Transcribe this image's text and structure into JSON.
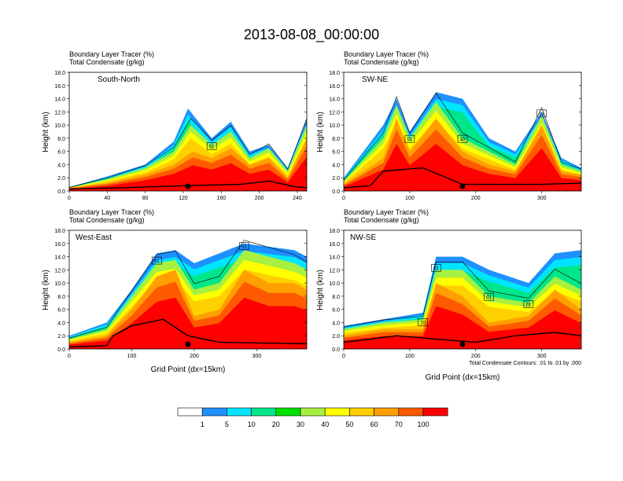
{
  "title": "2013-08-08_00:00:00",
  "colors": {
    "levels": [
      "#ffffff",
      "#1e90ff",
      "#00e5ff",
      "#00e68a",
      "#00e000",
      "#a8f040",
      "#ffff00",
      "#ffd000",
      "#ffa000",
      "#ff5a00",
      "#ff0000"
    ],
    "terrain": "#000000",
    "contour": "#000000"
  },
  "chart_data": [
    {
      "type": "contour",
      "label": "South-North",
      "line1": "Boundary Layer Tracer   (%)",
      "line2": "Total Condensate   (g/kg)",
      "ylabel": "Height (km)",
      "xlabel": "",
      "xlim": [
        0,
        250
      ],
      "ylim": [
        0,
        18
      ],
      "xticks": [
        0,
        40,
        80,
        120,
        160,
        200,
        240
      ],
      "yticks": [
        "0.0",
        "2.0",
        "4.0",
        "6.0",
        "8.0",
        "10.0",
        "12.0",
        "14.0",
        "16.0",
        "18.0"
      ],
      "marker_x": 125,
      "terrain": [
        [
          0,
          0.3
        ],
        [
          60,
          0.5
        ],
        [
          120,
          0.8
        ],
        [
          180,
          1.0
        ],
        [
          210,
          1.5
        ],
        [
          240,
          0.6
        ],
        [
          250,
          0.5
        ]
      ],
      "bands": [
        [
          [
            0,
            0.5
          ],
          [
            40,
            1.2
          ],
          [
            80,
            2.5
          ],
          [
            110,
            4.0
          ],
          [
            130,
            6.0
          ],
          [
            150,
            5.0
          ],
          [
            170,
            6.5
          ],
          [
            190,
            4.0
          ],
          [
            210,
            5.0
          ],
          [
            230,
            2.0
          ],
          [
            250,
            8.0
          ]
        ],
        [
          [
            0,
            0.5
          ],
          [
            40,
            1.8
          ],
          [
            80,
            3.5
          ],
          [
            110,
            6.0
          ],
          [
            128,
            10.0
          ],
          [
            150,
            7.0
          ],
          [
            170,
            9.0
          ],
          [
            190,
            5.0
          ],
          [
            210,
            6.5
          ],
          [
            230,
            3.0
          ],
          [
            250,
            10.0
          ]
        ],
        [
          [
            0,
            0.6
          ],
          [
            40,
            2.2
          ],
          [
            80,
            4.0
          ],
          [
            110,
            7.5
          ],
          [
            125,
            12.5
          ],
          [
            150,
            8.0
          ],
          [
            170,
            10.5
          ],
          [
            190,
            6.0
          ],
          [
            210,
            7.0
          ],
          [
            230,
            3.5
          ],
          [
            250,
            11.0
          ]
        ]
      ],
      "contour_labels": [
        "01"
      ],
      "note": ""
    },
    {
      "type": "contour",
      "label": "SW-NE",
      "line1": "Boundary Layer Tracer   (%)",
      "line2": "Total Condensate   (g/kg)",
      "ylabel": "Height (km)",
      "xlabel": "",
      "xlim": [
        0,
        360
      ],
      "ylim": [
        0,
        18
      ],
      "xticks": [
        0,
        100,
        200,
        300
      ],
      "yticks": [
        "0.0",
        "2.0",
        "4.0",
        "6.0",
        "8.0",
        "10.0",
        "12.0",
        "14.0",
        "16.0",
        "18.0"
      ],
      "marker_x": 180,
      "terrain": [
        [
          0,
          0.5
        ],
        [
          40,
          0.8
        ],
        [
          60,
          3.0
        ],
        [
          120,
          3.5
        ],
        [
          180,
          1.0
        ],
        [
          300,
          1.0
        ],
        [
          360,
          1.2
        ]
      ],
      "bands": [
        [
          [
            0,
            1.0
          ],
          [
            60,
            5.0
          ],
          [
            80,
            11.0
          ],
          [
            100,
            6.0
          ],
          [
            140,
            11.0
          ],
          [
            180,
            6.0
          ],
          [
            220,
            4.0
          ],
          [
            260,
            3.0
          ],
          [
            300,
            10.0
          ],
          [
            330,
            3.0
          ],
          [
            360,
            2.5
          ]
        ],
        [
          [
            0,
            1.5
          ],
          [
            60,
            8.0
          ],
          [
            80,
            13.0
          ],
          [
            100,
            8.0
          ],
          [
            140,
            13.5
          ],
          [
            180,
            8.0
          ],
          [
            220,
            6.0
          ],
          [
            260,
            4.0
          ],
          [
            300,
            11.5
          ],
          [
            330,
            4.0
          ],
          [
            360,
            3.0
          ]
        ],
        [
          [
            0,
            2.0
          ],
          [
            60,
            10.0
          ],
          [
            80,
            14.0
          ],
          [
            100,
            9.0
          ],
          [
            140,
            15.0
          ],
          [
            180,
            14.0
          ],
          [
            220,
            8.0
          ],
          [
            260,
            6.0
          ],
          [
            300,
            12.0
          ],
          [
            330,
            5.0
          ],
          [
            360,
            3.5
          ]
        ]
      ],
      "contour_labels": [
        "01",
        "10",
        "01"
      ],
      "note": ""
    },
    {
      "type": "contour",
      "label": "West-East",
      "line1": "Boundary Layer Tracer   (%)",
      "line2": "Total Condensate   (g/kg)",
      "ylabel": "Height (km)",
      "xlabel": "Grid Point (dx=15km)",
      "xlim": [
        0,
        380
      ],
      "ylim": [
        0,
        18
      ],
      "xticks": [
        0,
        100,
        200,
        300
      ],
      "yticks": [
        "0.0",
        "2.0",
        "4.0",
        "6.0",
        "8.0",
        "10.0",
        "12.0",
        "14.0",
        "16.0",
        "18.0"
      ],
      "marker_x": 190,
      "terrain": [
        [
          0,
          0.3
        ],
        [
          60,
          0.5
        ],
        [
          70,
          2.0
        ],
        [
          100,
          3.5
        ],
        [
          150,
          4.5
        ],
        [
          190,
          2.0
        ],
        [
          240,
          1.0
        ],
        [
          380,
          0.8
        ]
      ],
      "bands": [
        [
          [
            0,
            1.0
          ],
          [
            60,
            2.0
          ],
          [
            100,
            6.0
          ],
          [
            140,
            11.0
          ],
          [
            170,
            12.0
          ],
          [
            200,
            5.0
          ],
          [
            240,
            6.0
          ],
          [
            280,
            12.0
          ],
          [
            320,
            10.0
          ],
          [
            360,
            10.0
          ],
          [
            380,
            9.0
          ]
        ],
        [
          [
            0,
            1.5
          ],
          [
            60,
            3.0
          ],
          [
            100,
            8.0
          ],
          [
            140,
            13.0
          ],
          [
            170,
            13.5
          ],
          [
            200,
            9.0
          ],
          [
            240,
            10.0
          ],
          [
            280,
            15.0
          ],
          [
            320,
            14.0
          ],
          [
            360,
            13.0
          ],
          [
            380,
            12.0
          ]
        ],
        [
          [
            0,
            2.0
          ],
          [
            60,
            4.0
          ],
          [
            100,
            9.0
          ],
          [
            140,
            14.5
          ],
          [
            170,
            15.0
          ],
          [
            200,
            13.0
          ],
          [
            240,
            14.5
          ],
          [
            280,
            16.0
          ],
          [
            320,
            15.5
          ],
          [
            360,
            15.0
          ],
          [
            380,
            14.0
          ]
        ]
      ],
      "contour_labels": [
        "01",
        "01"
      ],
      "note": ""
    },
    {
      "type": "contour",
      "label": "NW-SE",
      "line1": "Boundary Layer Tracer   (%)",
      "line2": "Total Condensate   (g/kg)",
      "ylabel": "Height (km)",
      "xlabel": "Grid Point (dx=15km)",
      "xlim": [
        0,
        360
      ],
      "ylim": [
        0,
        18
      ],
      "xticks": [
        0,
        100,
        200,
        300
      ],
      "yticks": [
        "0.0",
        "2.0",
        "4.0",
        "6.0",
        "8.0",
        "10.0",
        "12.0",
        "14.0",
        "16.0",
        "18.0"
      ],
      "marker_x": 180,
      "terrain": [
        [
          0,
          1.0
        ],
        [
          40,
          1.5
        ],
        [
          80,
          2.0
        ],
        [
          140,
          1.5
        ],
        [
          200,
          1.0
        ],
        [
          260,
          2.0
        ],
        [
          320,
          2.5
        ],
        [
          360,
          2.0
        ]
      ],
      "bands": [
        [
          [
            0,
            2.0
          ],
          [
            60,
            3.0
          ],
          [
            120,
            3.0
          ],
          [
            140,
            10.0
          ],
          [
            180,
            8.0
          ],
          [
            220,
            4.0
          ],
          [
            280,
            5.0
          ],
          [
            320,
            9.0
          ],
          [
            360,
            6.0
          ]
        ],
        [
          [
            0,
            3.0
          ],
          [
            60,
            4.0
          ],
          [
            120,
            4.5
          ],
          [
            140,
            12.0
          ],
          [
            180,
            12.0
          ],
          [
            220,
            8.0
          ],
          [
            280,
            7.0
          ],
          [
            320,
            11.0
          ],
          [
            360,
            9.0
          ]
        ],
        [
          [
            0,
            3.5
          ],
          [
            60,
            4.5
          ],
          [
            120,
            5.5
          ],
          [
            140,
            14.0
          ],
          [
            180,
            14.0
          ],
          [
            220,
            12.0
          ],
          [
            280,
            10.0
          ],
          [
            320,
            14.5
          ],
          [
            360,
            15.0
          ]
        ]
      ],
      "contour_labels": [
        "10",
        "01",
        "01",
        "01"
      ],
      "note": "Total Condensate Contours: .01 to .01 by .000"
    }
  ],
  "colorbar": {
    "labels": [
      "1",
      "5",
      "10",
      "20",
      "30",
      "40",
      "50",
      "60",
      "70",
      "100"
    ]
  }
}
